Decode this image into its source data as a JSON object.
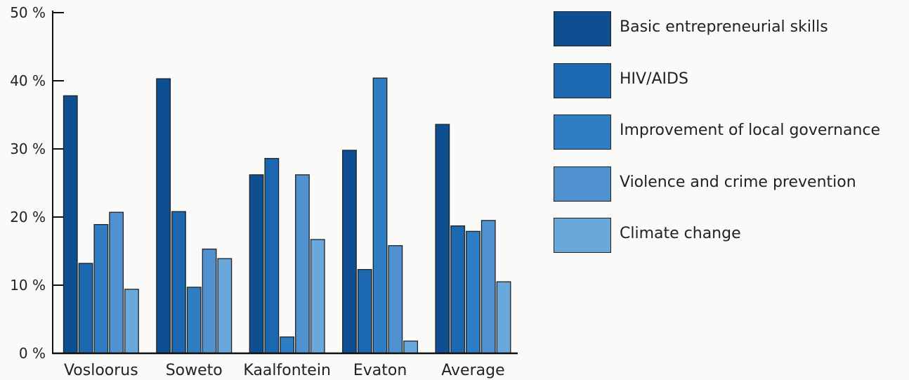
{
  "chart_data": {
    "type": "bar",
    "categories": [
      "Vosloorus",
      "Soweto",
      "Kaalfontein",
      "Evaton",
      "Average"
    ],
    "series": [
      {
        "name": "Basic entrepreneurial skills",
        "color": "#0d4f91",
        "values": [
          37.8,
          40.3,
          26.2,
          29.8,
          33.6
        ]
      },
      {
        "name": "HIV/AIDS",
        "color": "#1b67b0",
        "values": [
          13.2,
          20.8,
          28.6,
          12.3,
          18.7
        ]
      },
      {
        "name": "Improvement of local governance",
        "color": "#2f7ec3",
        "values": [
          18.9,
          9.7,
          2.4,
          40.4,
          17.9
        ]
      },
      {
        "name": "Violence and crime prevention",
        "color": "#4f92cf",
        "values": [
          20.7,
          15.3,
          26.2,
          15.8,
          19.5
        ]
      },
      {
        "name": "Climate change",
        "color": "#6aa8dc",
        "values": [
          9.4,
          13.9,
          16.7,
          1.8,
          10.5
        ]
      }
    ],
    "yticks": [
      "0 %",
      "10 %",
      "20 %",
      "30 %",
      "40 %",
      "50 %"
    ],
    "ylim": [
      0,
      50
    ],
    "grid": false,
    "legend_position": "right"
  }
}
